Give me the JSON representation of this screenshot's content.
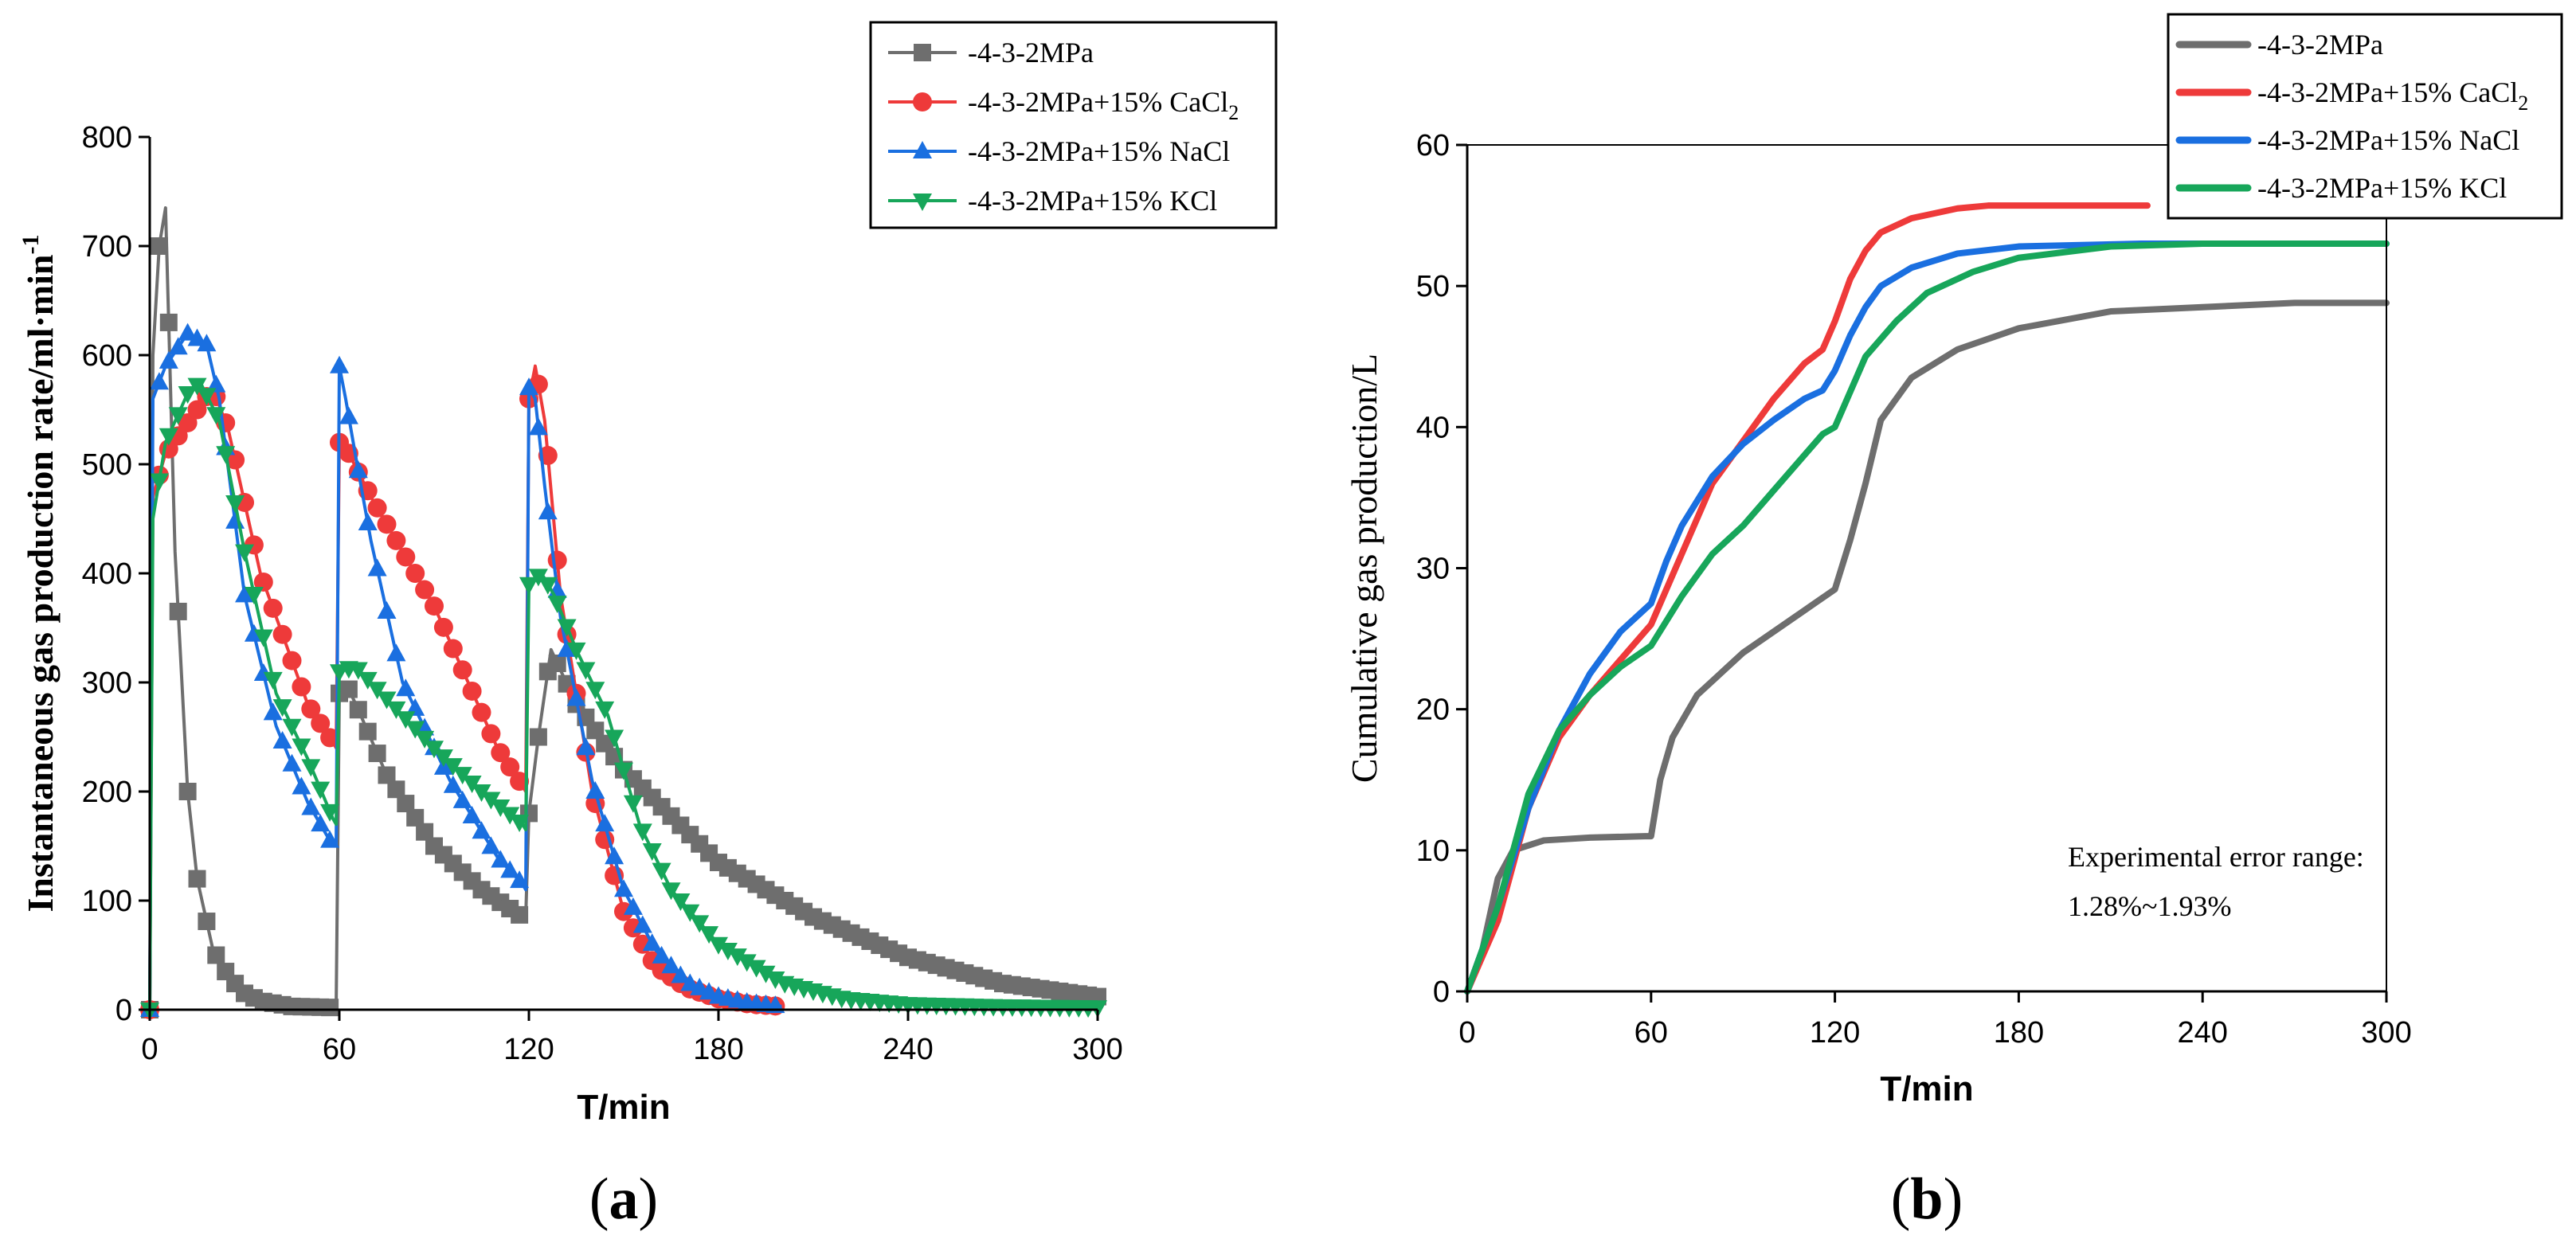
{
  "chart_data": [
    {
      "type": "line",
      "panel_label": "a",
      "title": "",
      "xlabel": "T/min",
      "ylabel_main": "Instantaneous gas production rate/ml·min",
      "ylabel_sup": "-1",
      "xlim": [
        0,
        300
      ],
      "ylim": [
        0,
        800
      ],
      "xticks": [
        0,
        60,
        120,
        180,
        240,
        300
      ],
      "yticks": [
        0,
        100,
        200,
        300,
        400,
        500,
        600,
        700,
        800
      ],
      "legend_position": "top-right",
      "series": [
        {
          "name": "-4-3-2MPa",
          "color": "#6e6e6e",
          "marker": "square",
          "points": [
            [
              0,
              0
            ],
            [
              1,
              600
            ],
            [
              3,
              700
            ],
            [
              5,
              735
            ],
            [
              8,
              420
            ],
            [
              12,
              200
            ],
            [
              15,
              120
            ],
            [
              20,
              55
            ],
            [
              25,
              30
            ],
            [
              30,
              15
            ],
            [
              35,
              8
            ],
            [
              45,
              3
            ],
            [
              58,
              2
            ],
            [
              59,
              2
            ],
            [
              60,
              290
            ],
            [
              62,
              300
            ],
            [
              66,
              275
            ],
            [
              75,
              215
            ],
            [
              90,
              150
            ],
            [
              105,
              110
            ],
            [
              118,
              85
            ],
            [
              119,
              85
            ],
            [
              120,
              180
            ],
            [
              123,
              250
            ],
            [
              127,
              330
            ],
            [
              135,
              280
            ],
            [
              150,
              220
            ],
            [
              180,
              135
            ],
            [
              210,
              85
            ],
            [
              240,
              48
            ],
            [
              270,
              24
            ],
            [
              300,
              12
            ]
          ]
        },
        {
          "name": "-4-3-2MPa+15% CaCl",
          "name_sub": "2",
          "color": "#ee3a3a",
          "marker": "circle",
          "points": [
            [
              0,
              0
            ],
            [
              1,
              470
            ],
            [
              5,
              510
            ],
            [
              15,
              550
            ],
            [
              20,
              570
            ],
            [
              25,
              530
            ],
            [
              35,
              400
            ],
            [
              50,
              280
            ],
            [
              58,
              245
            ],
            [
              59,
              240
            ],
            [
              60,
              520
            ],
            [
              63,
              510
            ],
            [
              70,
              470
            ],
            [
              90,
              370
            ],
            [
              110,
              240
            ],
            [
              118,
              205
            ],
            [
              119,
              200
            ],
            [
              120,
              560
            ],
            [
              122,
              590
            ],
            [
              125,
              540
            ],
            [
              130,
              380
            ],
            [
              140,
              200
            ],
            [
              150,
              90
            ],
            [
              160,
              40
            ],
            [
              170,
              20
            ],
            [
              180,
              10
            ],
            [
              190,
              5
            ],
            [
              200,
              3
            ]
          ]
        },
        {
          "name": "-4-3-2MPa+15% NaCl",
          "color": "#1a6fe0",
          "marker": "triangle-up",
          "points": [
            [
              0,
              0
            ],
            [
              1,
              560
            ],
            [
              5,
              590
            ],
            [
              12,
              620
            ],
            [
              18,
              610
            ],
            [
              22,
              560
            ],
            [
              30,
              380
            ],
            [
              40,
              260
            ],
            [
              50,
              190
            ],
            [
              58,
              150
            ],
            [
              59,
              150
            ],
            [
              60,
              590
            ],
            [
              62,
              560
            ],
            [
              65,
              510
            ],
            [
              70,
              430
            ],
            [
              80,
              300
            ],
            [
              95,
              210
            ],
            [
              110,
              140
            ],
            [
              118,
              115
            ],
            [
              119,
              110
            ],
            [
              120,
              570
            ],
            [
              122,
              560
            ],
            [
              125,
              480
            ],
            [
              130,
              360
            ],
            [
              140,
              210
            ],
            [
              150,
              110
            ],
            [
              160,
              55
            ],
            [
              170,
              25
            ],
            [
              180,
              12
            ],
            [
              190,
              6
            ],
            [
              200,
              3
            ]
          ]
        },
        {
          "name": "-4-3-2MPa+15% KCl",
          "color": "#17a65a",
          "marker": "triangle-down",
          "points": [
            [
              0,
              0
            ],
            [
              1,
              450
            ],
            [
              5,
              520
            ],
            [
              12,
              565
            ],
            [
              16,
              575
            ],
            [
              22,
              540
            ],
            [
              30,
              420
            ],
            [
              40,
              290
            ],
            [
              50,
              230
            ],
            [
              58,
              175
            ],
            [
              59,
              170
            ],
            [
              60,
              310
            ],
            [
              65,
              315
            ],
            [
              75,
              285
            ],
            [
              90,
              240
            ],
            [
              105,
              200
            ],
            [
              118,
              170
            ],
            [
              119,
              165
            ],
            [
              120,
              390
            ],
            [
              124,
              400
            ],
            [
              128,
              380
            ],
            [
              135,
              330
            ],
            [
              145,
              270
            ],
            [
              155,
              170
            ],
            [
              165,
              110
            ],
            [
              180,
              60
            ],
            [
              200,
              25
            ],
            [
              220,
              10
            ],
            [
              240,
              5
            ],
            [
              270,
              3
            ],
            [
              300,
              2
            ]
          ]
        }
      ]
    },
    {
      "type": "line",
      "panel_label": "b",
      "title": "",
      "xlabel": "T/min",
      "ylabel": "Cumulative gas production/L",
      "xlim": [
        0,
        300
      ],
      "ylim": [
        0,
        60
      ],
      "xticks": [
        0,
        60,
        120,
        180,
        240,
        300
      ],
      "yticks": [
        0,
        10,
        20,
        30,
        40,
        50,
        60
      ],
      "legend_position": "top-right",
      "annotation": [
        "Experimental error range:",
        "1.28%~1.93%"
      ],
      "series": [
        {
          "name": "-4-3-2MPa",
          "color": "#6e6e6e",
          "points": [
            [
              0,
              0
            ],
            [
              5,
              3
            ],
            [
              10,
              8
            ],
            [
              15,
              10
            ],
            [
              25,
              10.7
            ],
            [
              40,
              10.9
            ],
            [
              58,
              11
            ],
            [
              60,
              11
            ],
            [
              63,
              15
            ],
            [
              67,
              18
            ],
            [
              75,
              21
            ],
            [
              90,
              24
            ],
            [
              110,
              27
            ],
            [
              120,
              28.5
            ],
            [
              125,
              32
            ],
            [
              130,
              36
            ],
            [
              135,
              40.5
            ],
            [
              145,
              43.5
            ],
            [
              160,
              45.5
            ],
            [
              180,
              47
            ],
            [
              210,
              48.2
            ],
            [
              240,
              48.5
            ],
            [
              270,
              48.8
            ],
            [
              300,
              48.8
            ]
          ]
        },
        {
          "name": "-4-3-2MPa+15% CaCl",
          "name_sub": "2",
          "color": "#ee3a3a",
          "points": [
            [
              0,
              0
            ],
            [
              10,
              5
            ],
            [
              20,
              13
            ],
            [
              30,
              18
            ],
            [
              40,
              21
            ],
            [
              50,
              23.5
            ],
            [
              60,
              26
            ],
            [
              70,
              31
            ],
            [
              80,
              36
            ],
            [
              90,
              39
            ],
            [
              100,
              42
            ],
            [
              110,
              44.5
            ],
            [
              116,
              45.5
            ],
            [
              120,
              47.5
            ],
            [
              125,
              50.5
            ],
            [
              130,
              52.5
            ],
            [
              135,
              53.8
            ],
            [
              145,
              54.8
            ],
            [
              160,
              55.5
            ],
            [
              170,
              55.7
            ],
            [
              200,
              55.7
            ],
            [
              222,
              55.7
            ]
          ]
        },
        {
          "name": "-4-3-2MPa+15% NaCl",
          "color": "#1a6fe0",
          "points": [
            [
              0,
              0
            ],
            [
              10,
              6
            ],
            [
              20,
              13
            ],
            [
              30,
              18.5
            ],
            [
              40,
              22.5
            ],
            [
              50,
              25.5
            ],
            [
              60,
              27.5
            ],
            [
              65,
              30.5
            ],
            [
              70,
              33
            ],
            [
              80,
              36.5
            ],
            [
              90,
              38.8
            ],
            [
              100,
              40.5
            ],
            [
              110,
              42
            ],
            [
              116,
              42.6
            ],
            [
              120,
              44
            ],
            [
              125,
              46.5
            ],
            [
              130,
              48.5
            ],
            [
              135,
              50
            ],
            [
              145,
              51.3
            ],
            [
              160,
              52.3
            ],
            [
              180,
              52.8
            ],
            [
              220,
              53
            ],
            [
              300,
              53
            ]
          ]
        },
        {
          "name": "-4-3-2MPa+15% KCl",
          "color": "#17a65a",
          "points": [
            [
              0,
              0
            ],
            [
              10,
              6
            ],
            [
              20,
              14
            ],
            [
              30,
              18.5
            ],
            [
              40,
              21
            ],
            [
              50,
              23
            ],
            [
              60,
              24.5
            ],
            [
              70,
              28
            ],
            [
              80,
              31
            ],
            [
              90,
              33
            ],
            [
              100,
              35.5
            ],
            [
              110,
              38
            ],
            [
              116,
              39.5
            ],
            [
              120,
              40
            ],
            [
              125,
              42.5
            ],
            [
              130,
              45
            ],
            [
              140,
              47.5
            ],
            [
              150,
              49.5
            ],
            [
              165,
              51
            ],
            [
              180,
              52
            ],
            [
              210,
              52.8
            ],
            [
              240,
              53
            ],
            [
              300,
              53
            ]
          ]
        }
      ]
    }
  ]
}
